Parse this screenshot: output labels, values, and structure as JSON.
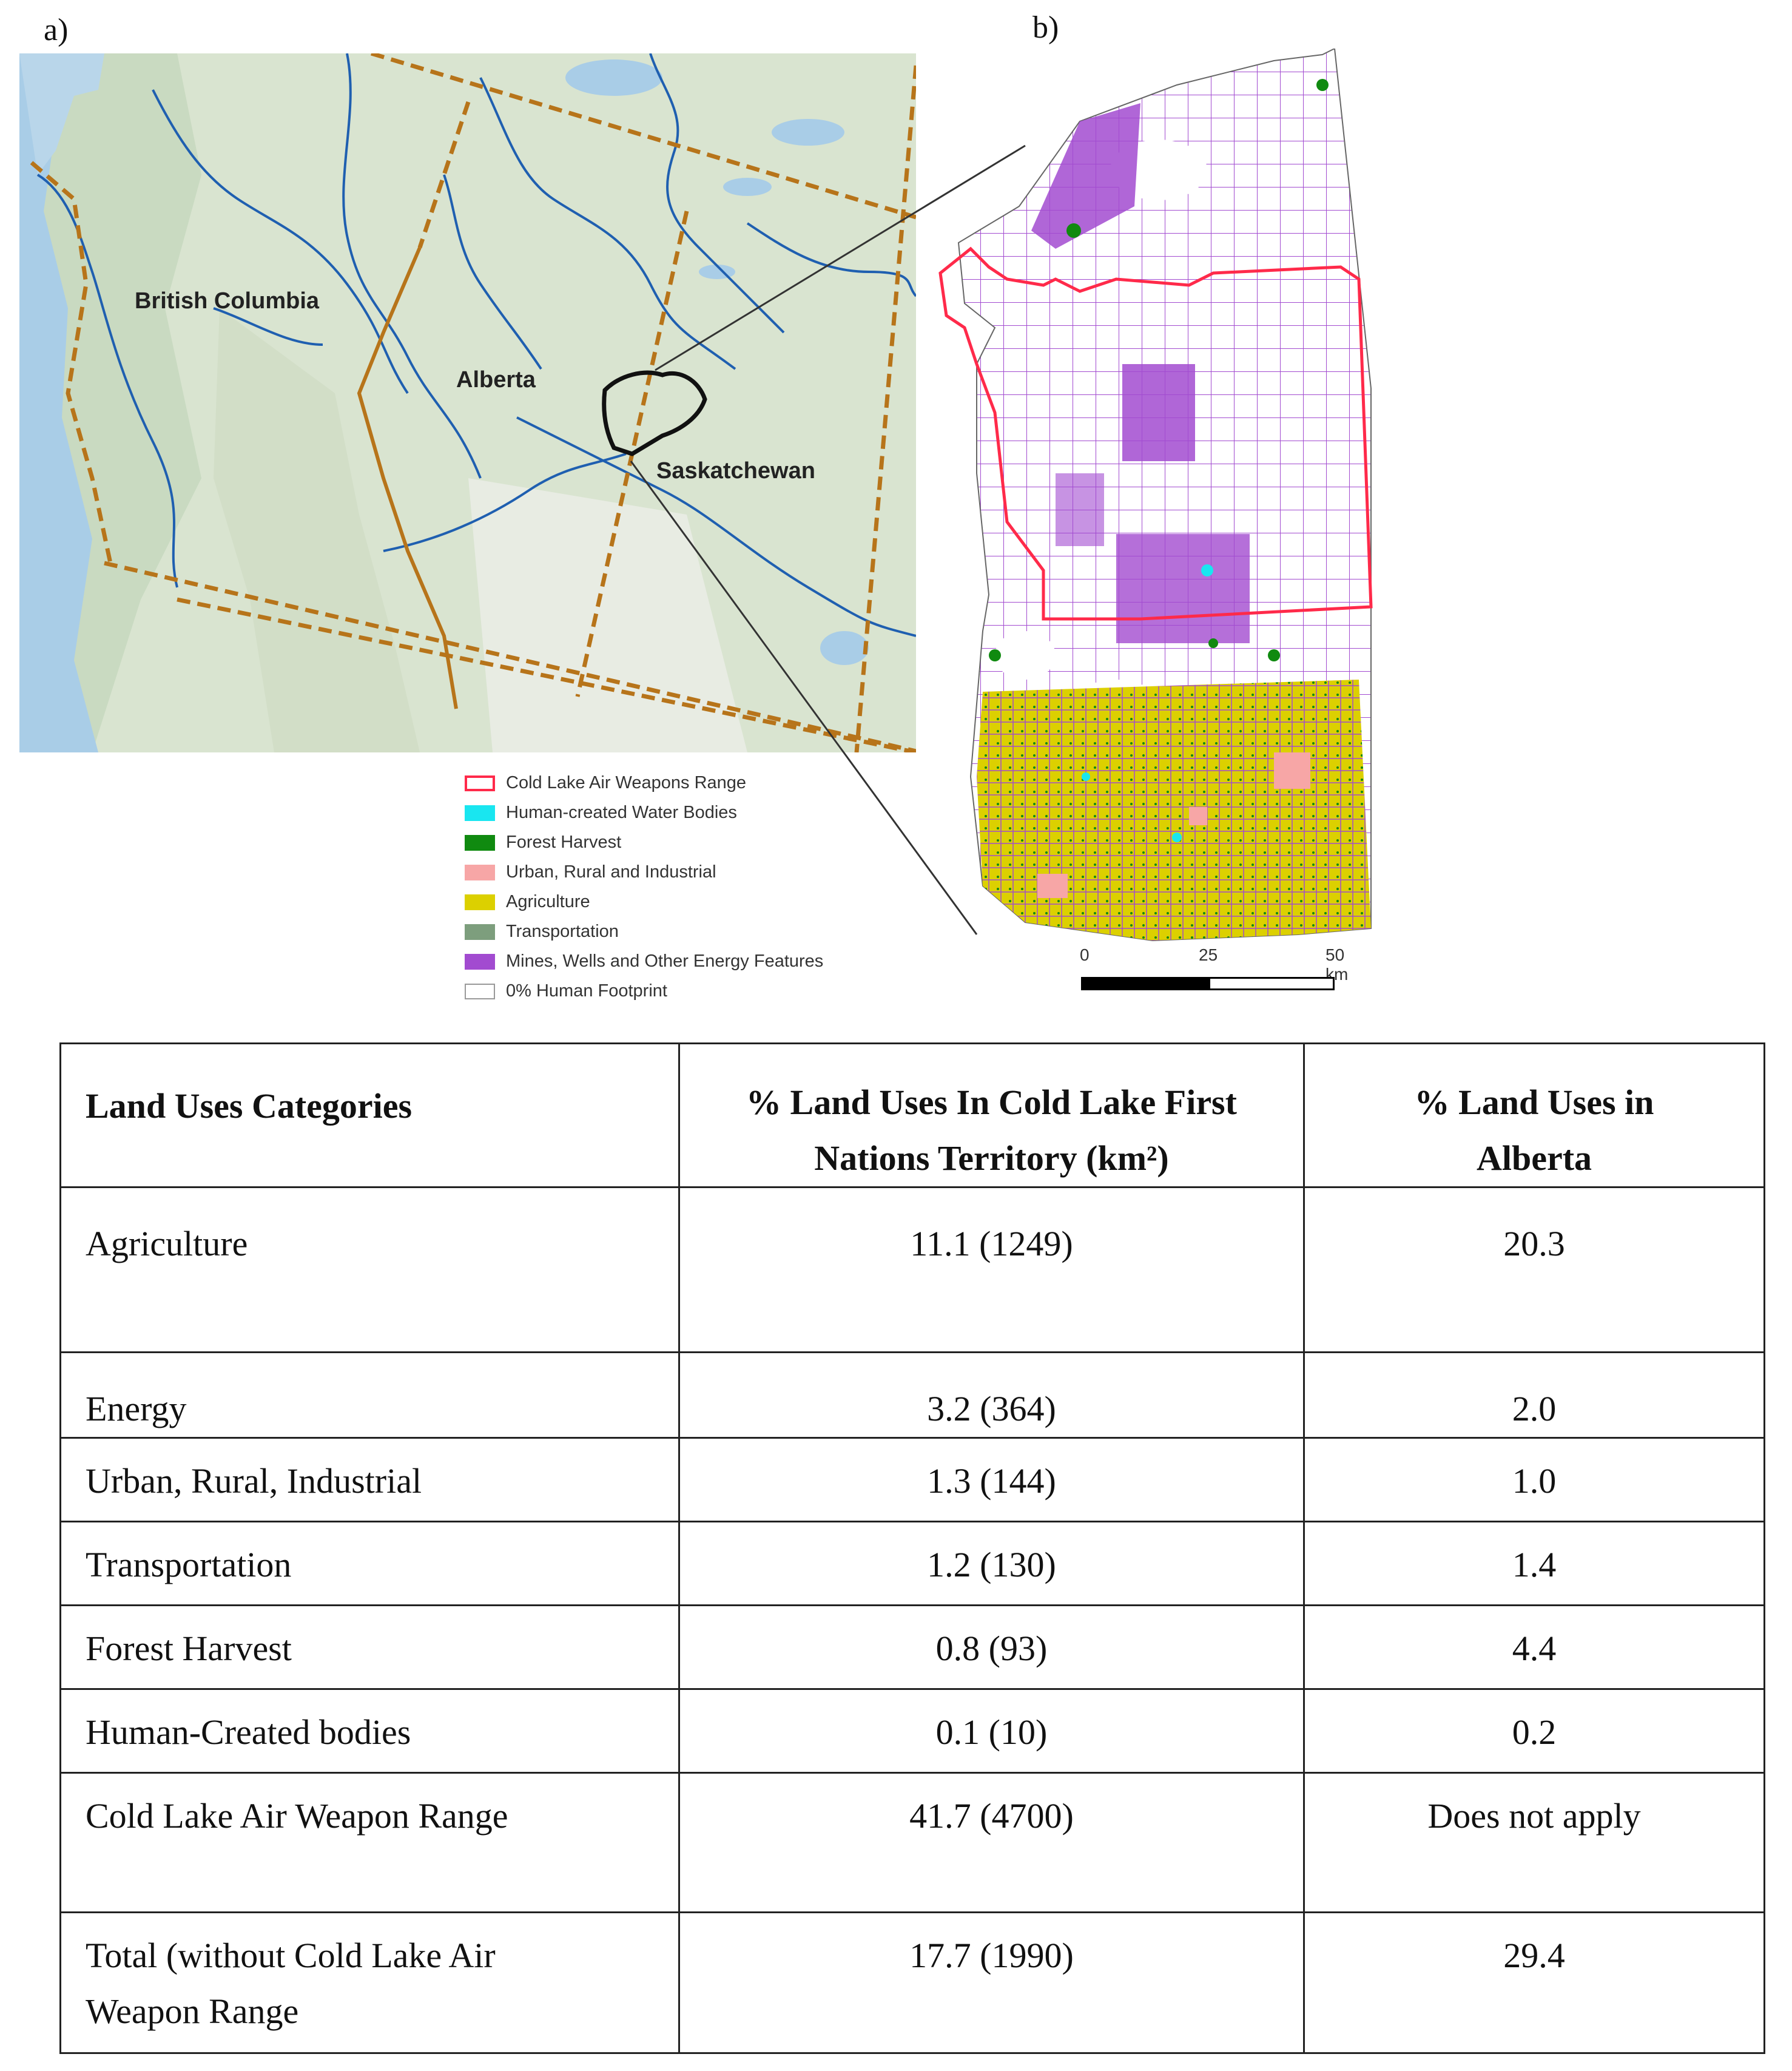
{
  "panel_a_label": "a)",
  "panel_b_label": "b)",
  "map_a": {
    "labels": {
      "british_columbia": "British Columbia",
      "alberta": "Alberta",
      "saskatchewan": "Saskatchewan"
    },
    "colors": {
      "land": "#d7e3cf",
      "water": "#a9cde7",
      "rivers": "#1f5fb0",
      "borders": "#b7741a"
    }
  },
  "legend": {
    "items": [
      {
        "label": "Cold Lake Air Weapons Range",
        "color": "#ff2a4a",
        "style": "outline"
      },
      {
        "label": "Human-created Water Bodies",
        "color": "#19e6f0"
      },
      {
        "label": "Forest Harvest",
        "color": "#108a10"
      },
      {
        "label": "Urban, Rural and Industrial",
        "color": "#f7a6a6"
      },
      {
        "label": "Agriculture",
        "color": "#dcd000"
      },
      {
        "label": "Transportation",
        "color": "#7d9e7d"
      },
      {
        "label": "Mines, Wells and Other Energy Features",
        "color": "#a24bd0"
      },
      {
        "label": "0% Human Footprint",
        "color": "#ffffff",
        "style": "outline-grey"
      }
    ]
  },
  "scale": {
    "ticks": [
      "0",
      "25",
      "50 km"
    ]
  },
  "table": {
    "headers": [
      "Land Uses Categories",
      "% Land Uses In Cold Lake First Nations Territory (km²)",
      "% Land Uses in Alberta"
    ],
    "rows": [
      {
        "category": "Agriculture",
        "territory": "11.1 (1249)",
        "alberta": "20.3"
      },
      {
        "category": "Energy",
        "territory": "3.2 (364)",
        "alberta": "2.0"
      },
      {
        "category": "Urban, Rural, Industrial",
        "territory": "1.3 (144)",
        "alberta": "1.0"
      },
      {
        "category": "Transportation",
        "territory": "1.2 (130)",
        "alberta": "1.4"
      },
      {
        "category": "Forest Harvest",
        "territory": "0.8 (93)",
        "alberta": "4.4"
      },
      {
        "category": "Human-Created bodies",
        "territory": "0.1 (10)",
        "alberta": "0.2"
      },
      {
        "category": "Cold Lake Air Weapon Range",
        "territory": "41.7 (4700)",
        "alberta": "Does not apply"
      },
      {
        "category": "Total (without Cold Lake Air Weapon Range",
        "territory": "17.7 (1990)",
        "alberta": "29.4"
      }
    ]
  }
}
